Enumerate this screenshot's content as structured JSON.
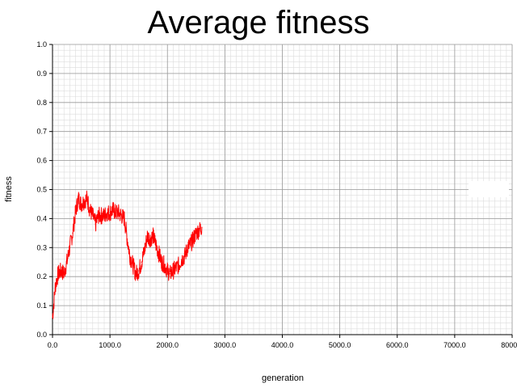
{
  "chart_data": {
    "type": "line",
    "title": "Average fitness",
    "xlabel": "generation",
    "ylabel": "fitness",
    "xlim": [
      0,
      8000
    ],
    "ylim": [
      0,
      1
    ],
    "grid": true,
    "x_ticks": [
      "0.0",
      "1000.0",
      "2000.0",
      "3000.0",
      "4000.0",
      "5000.0",
      "6000.0",
      "7000.0",
      "8000.0"
    ],
    "y_ticks": [
      "0.0",
      "0.1",
      "0.2",
      "0.3",
      "0.4",
      "0.5",
      "0.6",
      "0.7",
      "0.8",
      "0.9",
      "1.0"
    ],
    "series": [
      {
        "name": "average fitness",
        "color": "#ff0000",
        "x": [
          0,
          50,
          100,
          150,
          200,
          250,
          300,
          350,
          400,
          450,
          500,
          550,
          600,
          650,
          700,
          750,
          800,
          850,
          900,
          950,
          1000,
          1050,
          1100,
          1150,
          1200,
          1250,
          1300,
          1350,
          1400,
          1450,
          1500,
          1550,
          1600,
          1650,
          1700,
          1750,
          1800,
          1850,
          1900,
          1950,
          2000,
          2050,
          2100,
          2150,
          2200,
          2250,
          2300,
          2350,
          2400,
          2450,
          2500,
          2550,
          2600
        ],
        "y": [
          0.06,
          0.17,
          0.21,
          0.22,
          0.21,
          0.25,
          0.3,
          0.35,
          0.42,
          0.47,
          0.45,
          0.46,
          0.47,
          0.43,
          0.41,
          0.38,
          0.41,
          0.41,
          0.41,
          0.42,
          0.42,
          0.43,
          0.42,
          0.42,
          0.41,
          0.4,
          0.33,
          0.27,
          0.24,
          0.21,
          0.22,
          0.25,
          0.29,
          0.34,
          0.33,
          0.34,
          0.31,
          0.28,
          0.25,
          0.24,
          0.22,
          0.21,
          0.22,
          0.23,
          0.24,
          0.26,
          0.27,
          0.3,
          0.31,
          0.33,
          0.35,
          0.36,
          0.37
        ]
      }
    ]
  }
}
